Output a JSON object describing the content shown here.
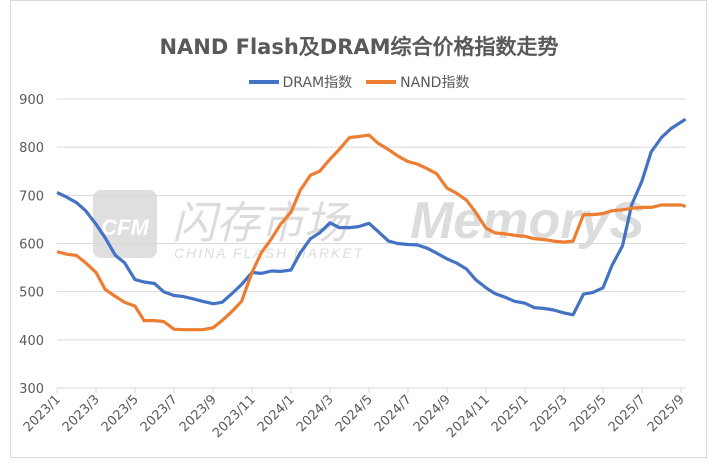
{
  "chart_data": {
    "type": "line",
    "title": "NAND Flash及DRAM综合价格指数走势",
    "xlabel": "",
    "ylabel": "",
    "ylim": [
      300,
      900
    ],
    "yticks": [
      "300",
      "400",
      "500",
      "600",
      "700",
      "800",
      "900"
    ],
    "xticks": [
      "2023/1",
      "2023/3",
      "2023/5",
      "2023/7",
      "2023/9",
      "2023/11",
      "2024/1",
      "2024/3",
      "2024/5",
      "2024/7",
      "2024/9",
      "2024/11",
      "2025/1",
      "2025/3",
      "2025/5",
      "2025/7",
      "2025/9"
    ],
    "grid": "horizontal",
    "legend": "top",
    "x": [
      "2023-01-01",
      "2023-01-15",
      "2023-02-01",
      "2023-02-15",
      "2023-03-01",
      "2023-03-15",
      "2023-04-01",
      "2023-04-15",
      "2023-05-01",
      "2023-05-15",
      "2023-06-01",
      "2023-06-15",
      "2023-07-01",
      "2023-07-15",
      "2023-08-01",
      "2023-08-15",
      "2023-09-01",
      "2023-09-15",
      "2023-10-01",
      "2023-10-15",
      "2023-11-01",
      "2023-11-15",
      "2023-12-01",
      "2023-12-15",
      "2024-01-01",
      "2024-01-15",
      "2024-02-01",
      "2024-02-15",
      "2024-03-01",
      "2024-03-15",
      "2024-04-01",
      "2024-04-15",
      "2024-05-01",
      "2024-05-15",
      "2024-06-01",
      "2024-06-15",
      "2024-07-01",
      "2024-07-15",
      "2024-08-01",
      "2024-08-15",
      "2024-09-01",
      "2024-09-15",
      "2024-10-01",
      "2024-10-15",
      "2024-11-01",
      "2024-11-15",
      "2024-12-01",
      "2024-12-15",
      "2025-01-01",
      "2025-01-15",
      "2025-02-01",
      "2025-02-15",
      "2025-03-01",
      "2025-03-15",
      "2025-04-01",
      "2025-04-15",
      "2025-05-01",
      "2025-05-15",
      "2025-06-01",
      "2025-06-15",
      "2025-07-01",
      "2025-07-15",
      "2025-08-01",
      "2025-08-15",
      "2025-09-01",
      "2025-09-08"
    ],
    "series": [
      {
        "name": "DRAM指数",
        "color": "#4472C4",
        "values": [
          706,
          697,
          685,
          668,
          640,
          612,
          575,
          560,
          525,
          520,
          517,
          500,
          492,
          490,
          485,
          480,
          475,
          478,
          497,
          515,
          540,
          538,
          543,
          542,
          545,
          580,
          610,
          622,
          643,
          633,
          633,
          635,
          642,
          625,
          605,
          600,
          598,
          597,
          590,
          580,
          568,
          560,
          547,
          525,
          508,
          496,
          488,
          480,
          476,
          467,
          465,
          462,
          456,
          452,
          495,
          498,
          508,
          555,
          595,
          680,
          730,
          790,
          820,
          838,
          852,
          858
        ]
      },
      {
        "name": "NAND指数",
        "color": "#ED7D31",
        "values": [
          583,
          578,
          575,
          560,
          540,
          505,
          490,
          478,
          470,
          440,
          440,
          438,
          422,
          421,
          421,
          421,
          425,
          440,
          460,
          480,
          540,
          580,
          610,
          640,
          665,
          710,
          742,
          750,
          775,
          795,
          820,
          822,
          825,
          808,
          795,
          782,
          770,
          765,
          755,
          745,
          715,
          705,
          690,
          665,
          632,
          622,
          620,
          617,
          615,
          610,
          608,
          605,
          603,
          605,
          660,
          660,
          662,
          668,
          670,
          673,
          675,
          675,
          680,
          680,
          680,
          677
        ]
      }
    ]
  },
  "watermark": {
    "logo": "CFM",
    "cn": "闪存市场",
    "en": "CHINA FLASH MARKET",
    "brand": "MemoryS"
  }
}
